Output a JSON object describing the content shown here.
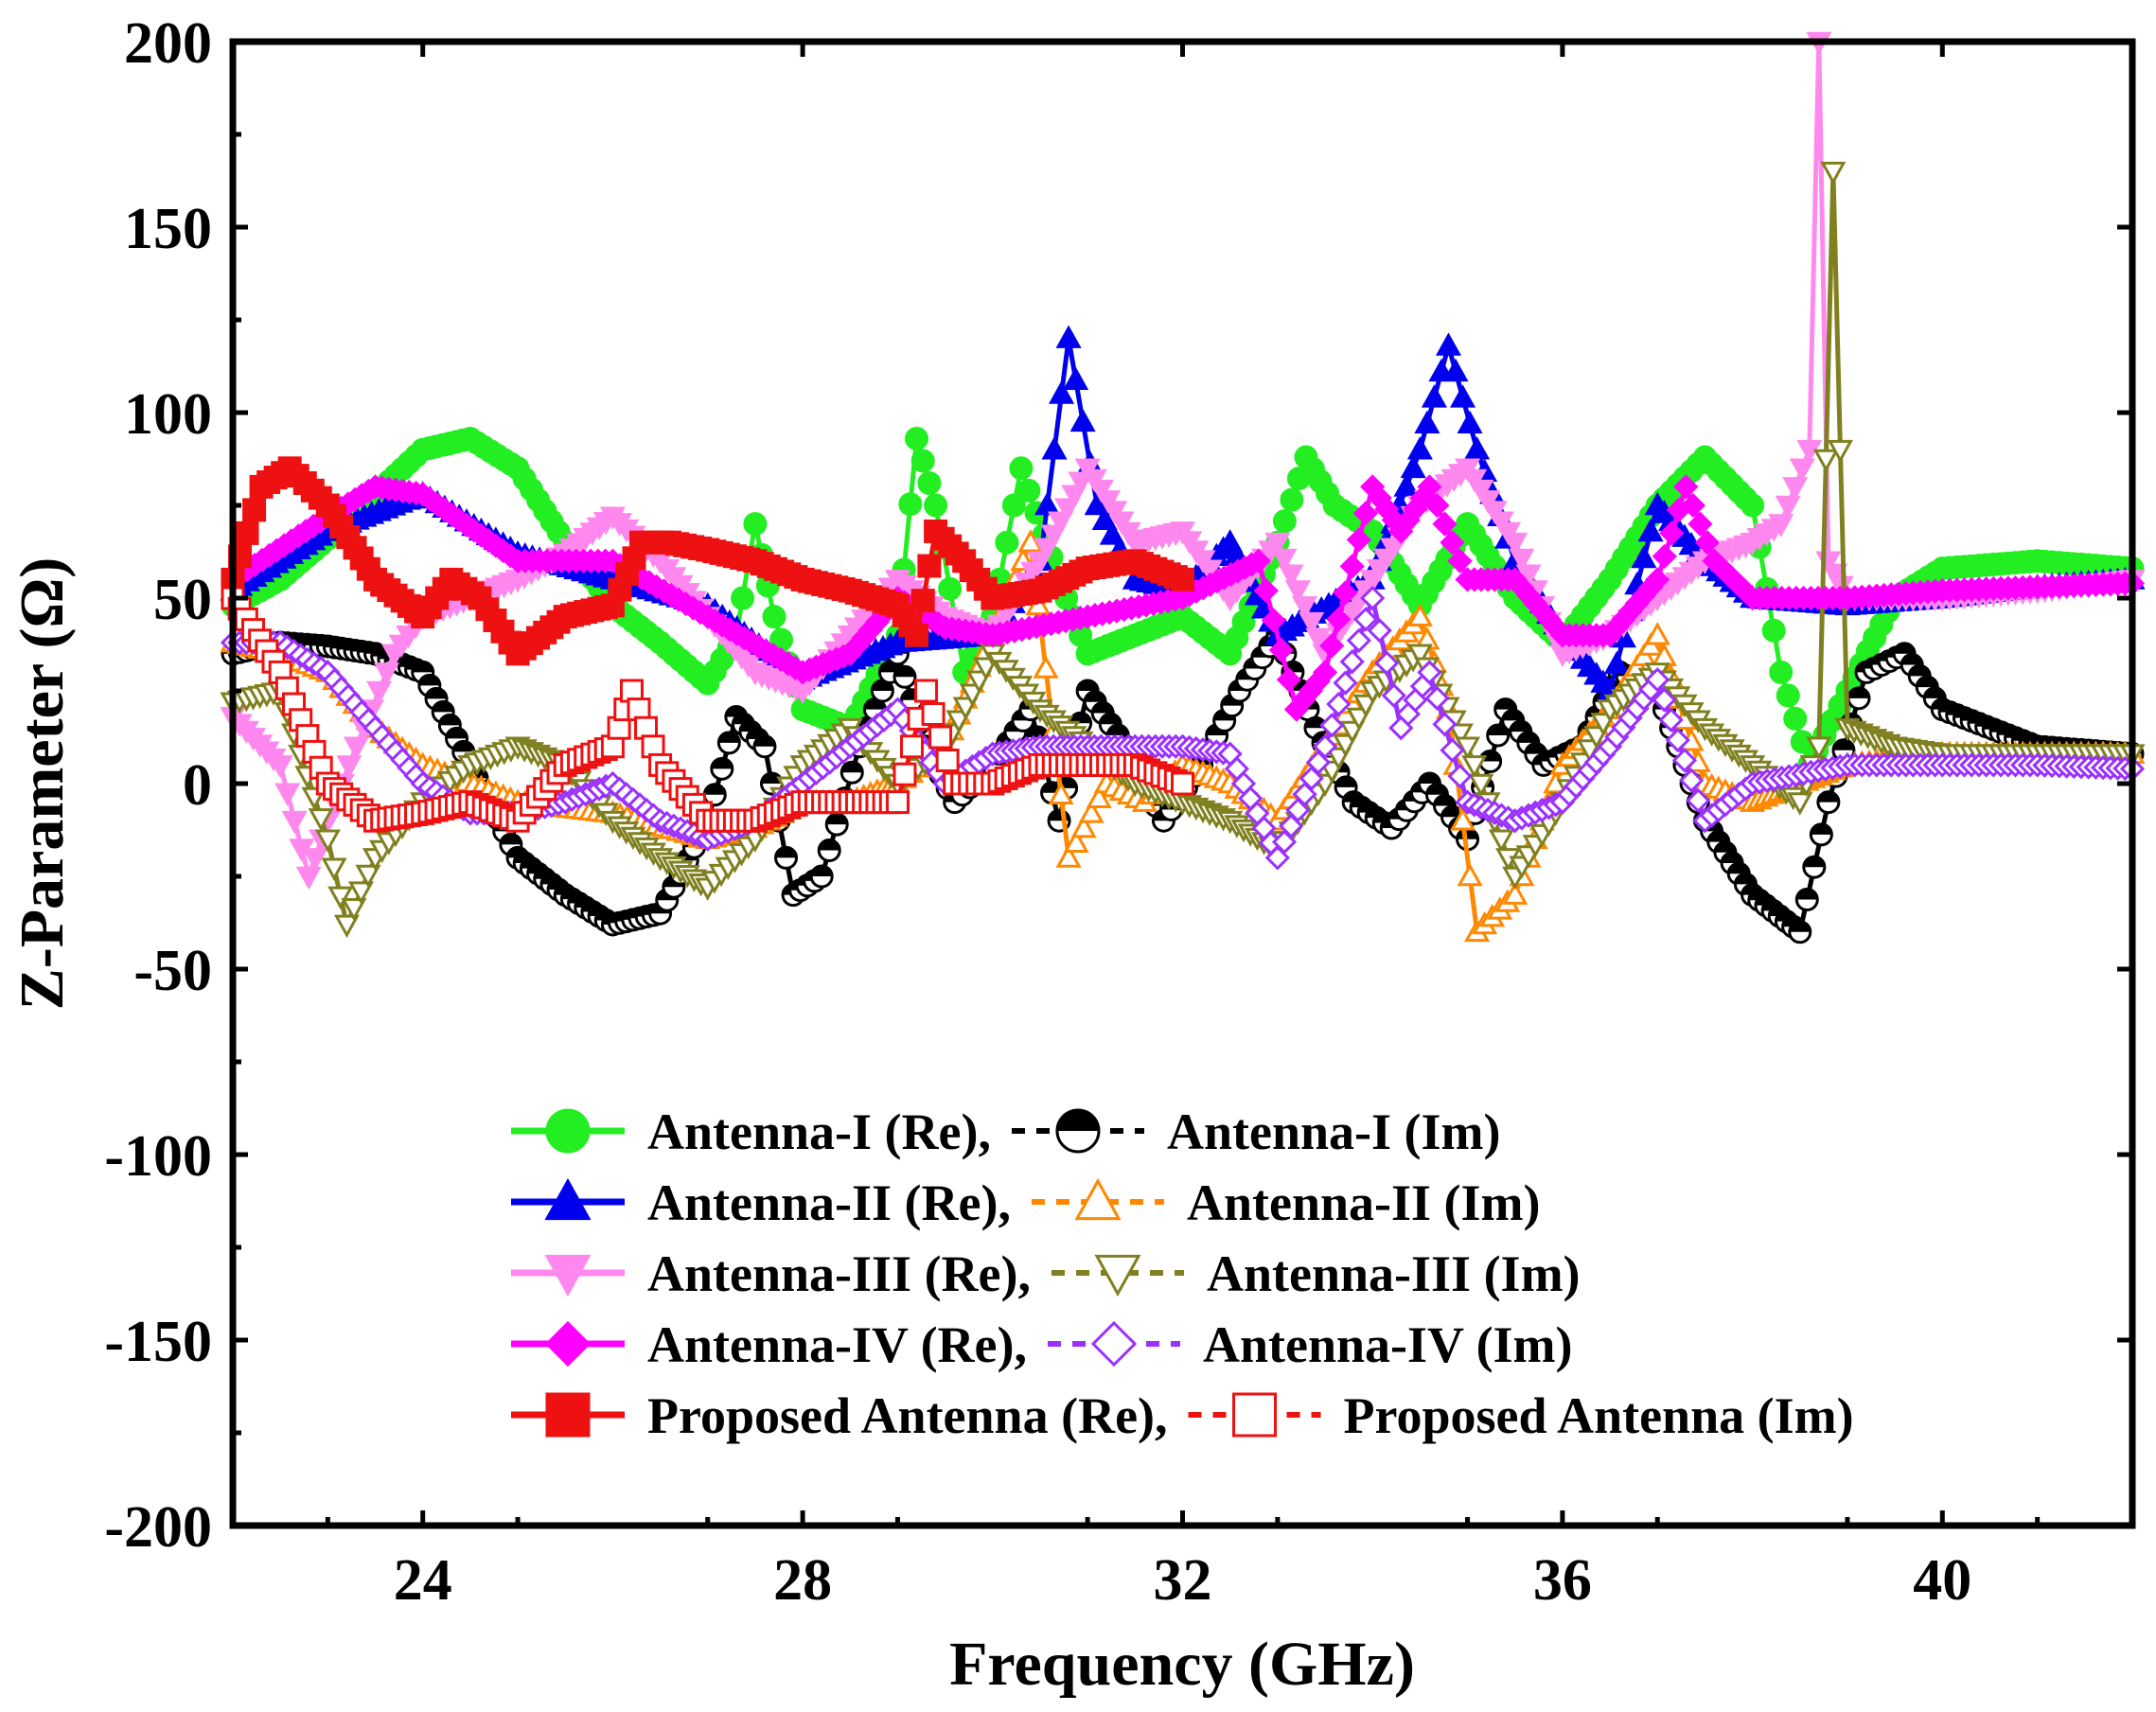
{
  "chart_data": {
    "type": "line",
    "title": "",
    "xlabel": "Frequency (GHz)",
    "ylabel": "Z-Parameter (Ω)",
    "xlim": [
      22,
      42
    ],
    "ylim": [
      -200,
      200
    ],
    "xticks": [
      24,
      28,
      32,
      36,
      40
    ],
    "yticks": [
      -200,
      -150,
      -100,
      -50,
      0,
      50,
      100,
      150,
      200
    ],
    "legend_position": "bottom-center",
    "series": [
      {
        "name": "Antenna-I (Re)",
        "legend_label": "Antenna-I (Re),",
        "color": "#22ee22",
        "dashed": false,
        "marker": "circle",
        "x": [
          22,
          22.5,
          23,
          23.5,
          24,
          24.5,
          25,
          25.5,
          26,
          26.5,
          27,
          27.3,
          27.5,
          27.7,
          28,
          28.5,
          29,
          29.2,
          29.4,
          29.7,
          30,
          30.3,
          30.7,
          31,
          31.5,
          32,
          32.5,
          33,
          33.3,
          33.6,
          34,
          34.5,
          35,
          35.5,
          36,
          36.5,
          37,
          37.5,
          38,
          38.3,
          38.6,
          39,
          39.5,
          40,
          41,
          42
        ],
        "y": [
          48,
          55,
          66,
          78,
          90,
          93,
          85,
          65,
          48,
          38,
          27,
          40,
          70,
          45,
          20,
          15,
          40,
          93,
          75,
          30,
          45,
          85,
          55,
          35,
          40,
          45,
          35,
          65,
          88,
          75,
          68,
          48,
          70,
          50,
          38,
          55,
          75,
          88,
          75,
          30,
          5,
          25,
          50,
          58,
          60,
          58
        ]
      },
      {
        "name": "Antenna-I (Im)",
        "legend_label": "Antenna-I (Im)",
        "color": "#000000",
        "dashed": true,
        "marker": "half-circle",
        "x": [
          22,
          22.5,
          23,
          23.5,
          24,
          24.5,
          25,
          25.5,
          26,
          26.5,
          27,
          27.3,
          27.6,
          27.9,
          28.2,
          28.6,
          29,
          29.3,
          29.6,
          30,
          30.4,
          30.7,
          31,
          31.4,
          31.8,
          32.2,
          32.6,
          33,
          33.4,
          33.8,
          34.2,
          34.6,
          35,
          35.4,
          35.8,
          36.2,
          36.6,
          37,
          37.5,
          38,
          38.5,
          38.8,
          39.2,
          39.6,
          40,
          41,
          42
        ],
        "y": [
          35,
          38,
          37,
          35,
          30,
          5,
          -20,
          -30,
          -38,
          -35,
          -10,
          18,
          10,
          -30,
          -25,
          10,
          35,
          10,
          -5,
          5,
          20,
          -10,
          25,
          10,
          -10,
          5,
          25,
          40,
          15,
          -5,
          -12,
          0,
          -15,
          20,
          5,
          10,
          30,
          25,
          -10,
          -30,
          -40,
          -5,
          30,
          35,
          20,
          10,
          8
        ]
      },
      {
        "name": "Antenna-II (Re)",
        "legend_label": "Antenna-II (Re),",
        "color": "#0000ee",
        "dashed": false,
        "marker": "triangle-up",
        "x": [
          22,
          23,
          24,
          25,
          26,
          27,
          28,
          29,
          30,
          30.5,
          30.8,
          31.1,
          31.5,
          32,
          32.5,
          33,
          34,
          34.5,
          34.8,
          35.1,
          35.5,
          36,
          36.5,
          37,
          37.5,
          38,
          39,
          40,
          41,
          42
        ],
        "y": [
          52,
          68,
          78,
          62,
          55,
          48,
          28,
          38,
          40,
          60,
          120,
          75,
          55,
          52,
          65,
          40,
          55,
          90,
          118,
          90,
          60,
          40,
          25,
          75,
          60,
          50,
          48,
          50,
          53,
          55
        ]
      },
      {
        "name": "Antenna-II (Im)",
        "legend_label": "Antenna-II (Im)",
        "color": "#ff8800",
        "dashed": true,
        "marker": "triangle-up-open",
        "x": [
          22,
          22.5,
          23,
          23.5,
          24,
          25,
          26,
          27,
          27.5,
          28,
          28.5,
          29,
          29.5,
          30,
          30.4,
          30.8,
          31.2,
          31.6,
          32,
          32.5,
          33,
          33.5,
          34,
          34.5,
          34.8,
          35.1,
          35.5,
          36,
          36.5,
          37,
          37.5,
          38,
          38.5,
          39,
          40,
          41,
          42
        ],
        "y": [
          38,
          35,
          30,
          15,
          5,
          -5,
          -8,
          -15,
          -12,
          -5,
          -5,
          0,
          10,
          40,
          65,
          -20,
          0,
          -5,
          5,
          0,
          -10,
          10,
          30,
          45,
          20,
          -40,
          -30,
          5,
          20,
          40,
          0,
          -5,
          0,
          5,
          8,
          8,
          8
        ]
      },
      {
        "name": "Antenna-III (Re)",
        "legend_label": "Antenna-III (Re),",
        "color": "#ff88ee",
        "dashed": false,
        "marker": "triangle-down",
        "x": [
          22,
          22.5,
          22.8,
          23,
          23.3,
          23.7,
          24,
          24.5,
          25,
          25.5,
          26,
          26.5,
          27,
          27.5,
          28,
          28.5,
          29,
          29.5,
          30,
          30.5,
          31,
          31.5,
          32,
          32.5,
          33,
          33.5,
          34,
          34.5,
          35,
          35.5,
          36,
          36.5,
          37,
          37.5,
          38,
          38.3,
          38.6,
          38.7,
          38.8,
          39,
          40,
          41,
          42
        ],
        "y": [
          18,
          5,
          -25,
          -10,
          10,
          35,
          45,
          50,
          55,
          62,
          72,
          60,
          45,
          30,
          25,
          40,
          55,
          45,
          40,
          60,
          85,
          65,
          68,
          50,
          65,
          35,
          55,
          75,
          85,
          65,
          35,
          40,
          50,
          60,
          65,
          70,
          90,
          200,
          60,
          50,
          50,
          52,
          55
        ]
      },
      {
        "name": "Antenna-III (Im)",
        "legend_label": "Antenna-III (Im)",
        "color": "#808020",
        "dashed": true,
        "marker": "triangle-down-open",
        "x": [
          22,
          22.5,
          23,
          23.2,
          23.5,
          24,
          24.5,
          25,
          25.5,
          26,
          26.5,
          27,
          27.5,
          28,
          28.5,
          29,
          29.5,
          30,
          30.5,
          31,
          31.5,
          32,
          32.5,
          33,
          33.5,
          34,
          34.5,
          35,
          35.5,
          36,
          36.5,
          37,
          37.5,
          38,
          38.5,
          38.7,
          38.85,
          39,
          39.5,
          40,
          41,
          42
        ],
        "y": [
          22,
          25,
          -15,
          -38,
          -20,
          -5,
          5,
          10,
          5,
          -10,
          -20,
          -28,
          -15,
          5,
          15,
          0,
          10,
          35,
          20,
          10,
          0,
          -5,
          -10,
          -18,
          0,
          25,
          35,
          10,
          -25,
          -5,
          20,
          30,
          15,
          5,
          -5,
          10,
          165,
          15,
          10,
          8,
          8,
          8
        ]
      },
      {
        "name": "Antenna-IV (Re)",
        "legend_label": "Antenna-IV (Re),",
        "color": "#ff00ff",
        "dashed": false,
        "marker": "diamond",
        "x": [
          22,
          23,
          23.5,
          24,
          25,
          26,
          27,
          28,
          28.5,
          29,
          29.5,
          30,
          31,
          32,
          32.8,
          33.2,
          33.5,
          34,
          34.3,
          34.6,
          35,
          35.5,
          36,
          36.5,
          37,
          37.3,
          37.6,
          38,
          39,
          40,
          41,
          42
        ],
        "y": [
          55,
          72,
          80,
          78,
          60,
          60,
          45,
          30,
          35,
          50,
          42,
          40,
          45,
          50,
          60,
          20,
          30,
          80,
          68,
          80,
          55,
          55,
          40,
          40,
          55,
          80,
          60,
          50,
          50,
          52,
          53,
          54
        ]
      },
      {
        "name": "Antenna-IV (Im)",
        "legend_label": "Antenna-IV (Im)",
        "color": "#9b30ff",
        "dashed": true,
        "marker": "diamond-open",
        "x": [
          22,
          22.5,
          23,
          23.5,
          24,
          24.5,
          25,
          25.5,
          26,
          26.5,
          27,
          27.5,
          28,
          28.5,
          29,
          29.5,
          30,
          30.5,
          31,
          31.5,
          32,
          32.5,
          33,
          33.5,
          34,
          34.3,
          34.6,
          35,
          35.5,
          36,
          36.5,
          37,
          37.5,
          38,
          39,
          40,
          41,
          42
        ],
        "y": [
          38,
          38,
          30,
          15,
          0,
          -8,
          -8,
          -5,
          0,
          -10,
          -15,
          -10,
          0,
          10,
          20,
          0,
          8,
          10,
          10,
          10,
          10,
          8,
          -20,
          10,
          50,
          15,
          30,
          -5,
          -10,
          -5,
          10,
          28,
          -10,
          0,
          5,
          5,
          5,
          4
        ]
      },
      {
        "name": "Proposed Antenna (Re)",
        "legend_label": "Proposed Antenna (Re),",
        "color": "#ee1111",
        "dashed": false,
        "marker": "square",
        "x": [
          22,
          22.3,
          22.6,
          23,
          23.5,
          24,
          24.3,
          24.6,
          25,
          25.5,
          26,
          26.3,
          26.6,
          27,
          27.5,
          28,
          28.5,
          29,
          29.2,
          29.4,
          29.7,
          30,
          30.5,
          31,
          31.5,
          32
        ],
        "y": [
          55,
          80,
          85,
          75,
          55,
          45,
          55,
          50,
          35,
          45,
          48,
          65,
          65,
          63,
          60,
          55,
          52,
          48,
          40,
          68,
          60,
          50,
          52,
          58,
          60,
          55
        ]
      },
      {
        "name": "Proposed Antenna (Im)",
        "legend_label": "Proposed Antenna (Im)",
        "color": "#ee1111",
        "dashed": true,
        "marker": "square-open",
        "x": [
          22,
          22.5,
          23,
          23.5,
          24,
          24.5,
          25,
          25.5,
          26,
          26.2,
          26.5,
          27,
          27.5,
          28,
          28.5,
          29,
          29.3,
          29.6,
          30,
          30.5,
          31,
          31.5,
          32
        ],
        "y": [
          50,
          30,
          0,
          -10,
          -8,
          -5,
          -10,
          5,
          10,
          25,
          5,
          -10,
          -10,
          -5,
          -5,
          -5,
          25,
          0,
          0,
          5,
          5,
          5,
          0
        ]
      }
    ]
  }
}
